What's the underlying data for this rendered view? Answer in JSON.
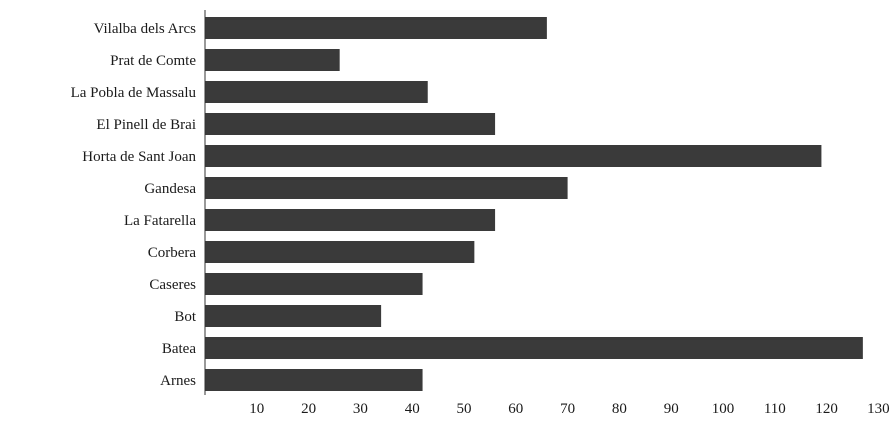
{
  "chart_data": {
    "type": "bar",
    "orientation": "horizontal",
    "categories": [
      "Vilalba dels Arcs",
      "Prat de Comte",
      "La Pobla de Massalu",
      "El Pinell de Brai",
      "Horta de Sant Joan",
      "Gandesa",
      "La Fatarella",
      "Corbera",
      "Caseres",
      "Bot",
      "Batea",
      "Arnes"
    ],
    "values": [
      66,
      26,
      43,
      56,
      119,
      70,
      56,
      52,
      42,
      34,
      127,
      42
    ],
    "xticks": [
      10,
      20,
      30,
      40,
      50,
      60,
      70,
      80,
      90,
      100,
      110,
      120,
      130
    ],
    "xlim": [
      0,
      130
    ],
    "title": "",
    "xlabel": "",
    "ylabel": "",
    "grid": false,
    "bar_color": "#3a3a3a"
  }
}
